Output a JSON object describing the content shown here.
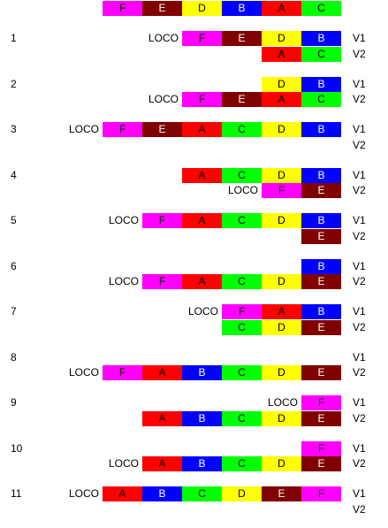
{
  "colors": {
    "A": "#ff0000",
    "B": "#0000ff",
    "C": "#00ff00",
    "D": "#ffff00",
    "E": "#800000",
    "F": "#ff00ff"
  },
  "text_colors": {
    "A": "#000000",
    "B": "#ffffff",
    "C": "#000000",
    "D": "#000000",
    "E": "#ffffff",
    "F": "#000000"
  },
  "loco_label": "LOCO",
  "track_labels": [
    "V1",
    "V2"
  ],
  "initial_train": [
    "F",
    "E",
    "D",
    "B",
    "A",
    "C"
  ],
  "steps": [
    {
      "number": "1",
      "v1": [
        "LOCO",
        "F",
        "E",
        "D",
        "B"
      ],
      "v2": [
        "A",
        "C"
      ]
    },
    {
      "number": "2",
      "v1": [
        "D",
        "B"
      ],
      "v2": [
        "LOCO",
        "F",
        "E",
        "A",
        "C"
      ]
    },
    {
      "number": "3",
      "v1": [
        "LOCO",
        "F",
        "E",
        "A",
        "C",
        "D",
        "B"
      ],
      "v2": []
    },
    {
      "number": "4",
      "v1": [
        "A",
        "C",
        "D",
        "B"
      ],
      "v2": [
        "LOCO",
        "F",
        "E"
      ]
    },
    {
      "number": "5",
      "v1": [
        "LOCO",
        "F",
        "A",
        "C",
        "D",
        "B"
      ],
      "v2": [
        "E"
      ]
    },
    {
      "number": "6",
      "v1": [
        "B"
      ],
      "v2": [
        "LOCO",
        "F",
        "A",
        "C",
        "D",
        "E"
      ]
    },
    {
      "number": "7",
      "v1": [
        "LOCO",
        "F",
        "A",
        "B"
      ],
      "v2": [
        "C",
        "D",
        "E"
      ]
    },
    {
      "number": "8",
      "v1": [],
      "v2": [
        "LOCO",
        "F",
        "A",
        "B",
        "C",
        "D",
        "E"
      ]
    },
    {
      "number": "9",
      "v1": [
        "LOCO",
        "F"
      ],
      "v2": [
        "A",
        "B",
        "C",
        "D",
        "E"
      ]
    },
    {
      "number": "10",
      "v1": [
        "F"
      ],
      "v2": [
        "LOCO",
        "A",
        "B",
        "C",
        "D",
        "E"
      ]
    },
    {
      "number": "11",
      "v1": [
        "LOCO",
        "A",
        "B",
        "C",
        "D",
        "E",
        "F"
      ],
      "v2": []
    }
  ]
}
